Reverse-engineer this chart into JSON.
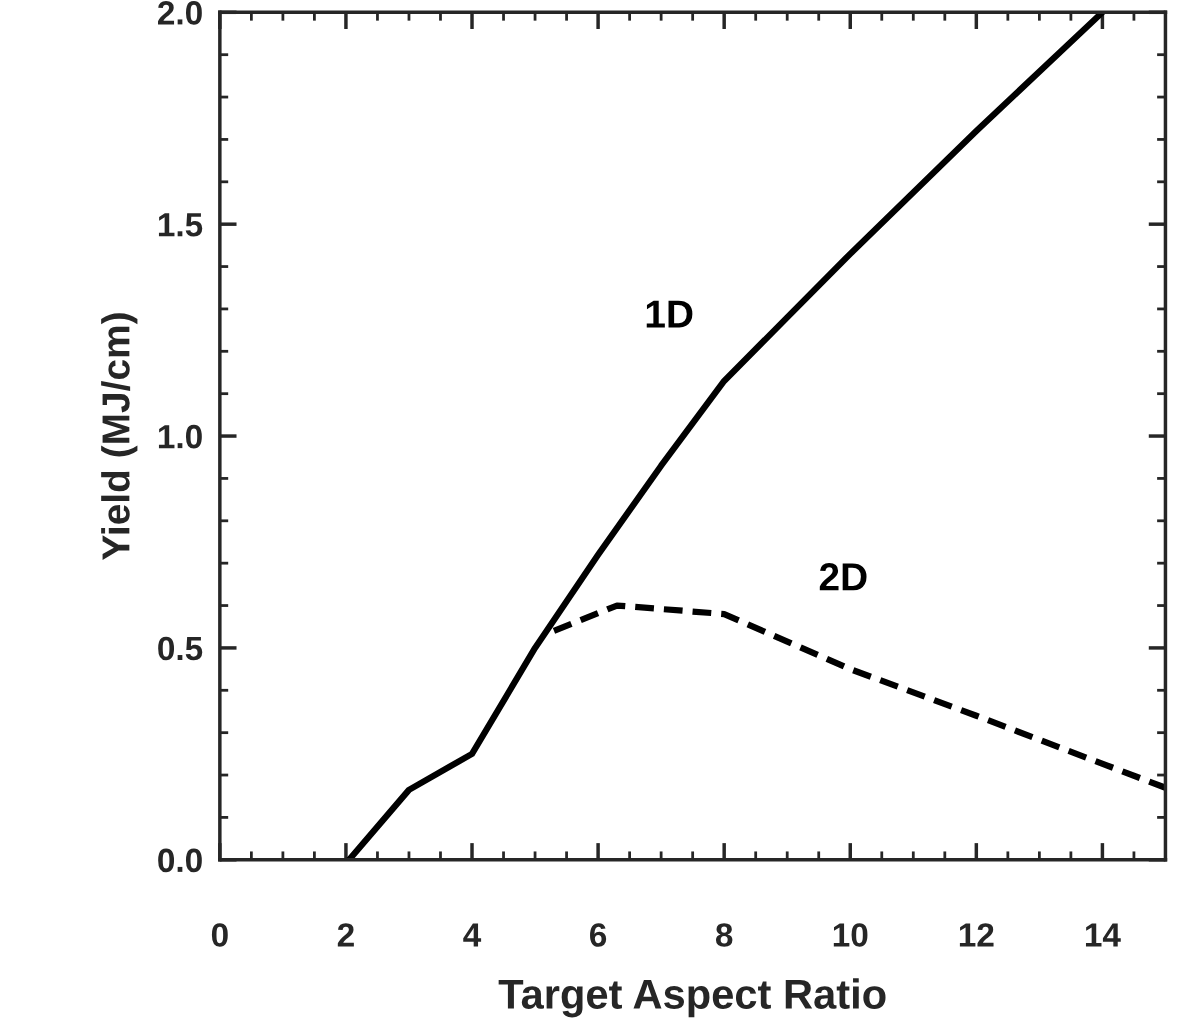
{
  "chart_data": {
    "type": "line",
    "xlabel": "Target Aspect Ratio",
    "ylabel": "Yield (MJ/cm)",
    "xlim": [
      0,
      15
    ],
    "ylim": [
      0,
      2.0
    ],
    "xticks": [
      0,
      2,
      4,
      6,
      8,
      10,
      12,
      14
    ],
    "yticks": [
      {
        "value": 0,
        "label": "0.0"
      },
      0.5,
      {
        "value": 1,
        "label": "1.0"
      },
      1.5,
      {
        "value": 2,
        "label": "2.0"
      }
    ],
    "grid": false,
    "legend": false,
    "marker": "none",
    "series": [
      {
        "name": "1D",
        "color": "#000000",
        "line_style": "solid",
        "x": [
          2.05,
          3,
          4,
          5,
          6,
          7,
          8,
          9,
          10,
          12,
          14
        ],
        "values": [
          0,
          0.165,
          0.25,
          0.5,
          0.72,
          0.93,
          1.13,
          1.28,
          1.43,
          1.72,
          2.0
        ]
      },
      {
        "name": "2D",
        "color": "#000000",
        "line_style": "dashed",
        "x": [
          5.3,
          6.3,
          8,
          10,
          12,
          15
        ],
        "values": [
          0.54,
          0.6,
          0.58,
          0.45,
          0.34,
          0.17
        ]
      }
    ]
  }
}
